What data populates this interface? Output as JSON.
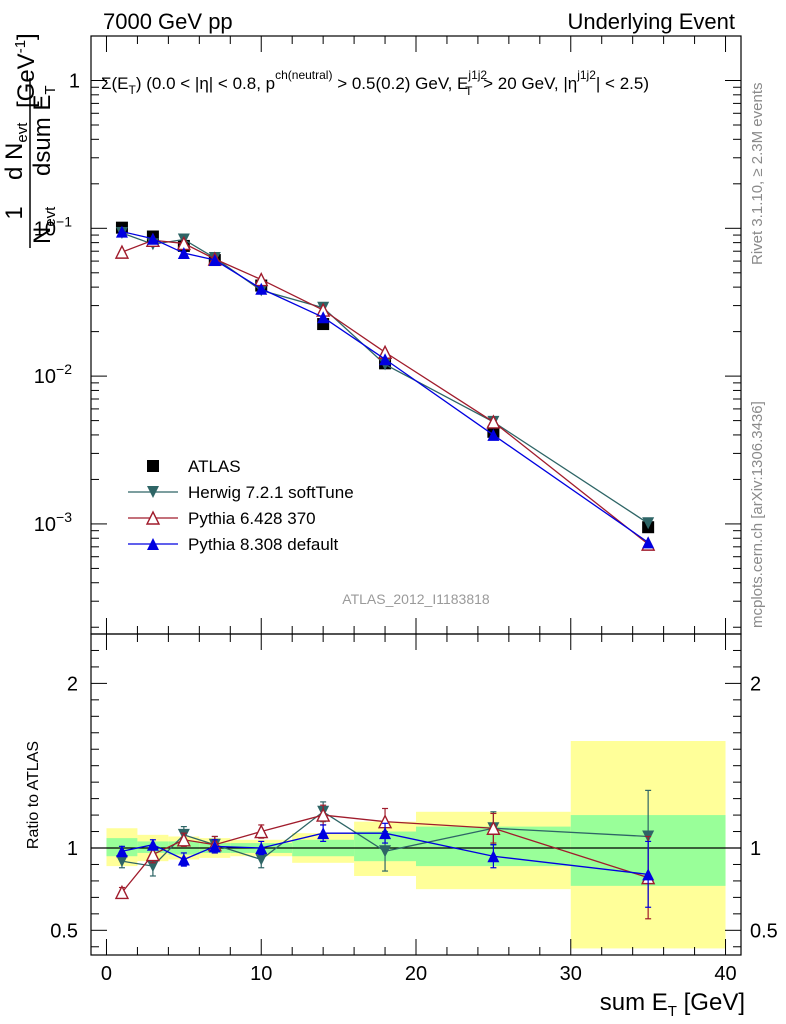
{
  "header": {
    "left": "7000 GeV pp",
    "right": "Underlying Event"
  },
  "cuts": {
    "a": "Σ(E",
    "a_sub": "T",
    "b": ") (0.0 < |η| < 0.8, p",
    "b_sup": "ch(neutral)",
    "c": " > 0.5(0.2) GeV, E",
    "c_sup": "j1j2",
    "c_sub": "T",
    "d": " > 20 GeV, |η",
    "d_sup": "j1j2",
    "e": "| < 2.5)"
  },
  "side": {
    "rivet": "Rivet 3.1.10, ≥ 2.3M events",
    "mcplots": "mcplots.cern.ch [arXiv:1306.3436]"
  },
  "watermark": "ATLAS_2012_I1183818",
  "ylabel_top": {
    "one": "1",
    "n": "N",
    "n_sub": "evt",
    "d": "d N",
    "d_sub": "evt",
    "dsum": "dsum E",
    "dsum_sub": "T",
    "unit": "[GeV",
    "unit_sup": "-1",
    "unit_end": "]"
  },
  "ylabel_bottom": "Ratio to ATLAS",
  "xlabel": {
    "main": "sum E",
    "sub": "T",
    "unit": " [GeV]"
  },
  "colors": {
    "atlas": "#000000",
    "herwig": "#2e6566",
    "pythia6": "#a01c2c",
    "pythia8": "#0000e0",
    "band_inner": "#99ff99",
    "band_outer": "#ffff99"
  },
  "chart_data": {
    "type": "scatter",
    "x_label": "sum E_T [GeV]",
    "xlim": [
      -1,
      41
    ],
    "main_panel": {
      "yscale": "log",
      "ylim": [
        0.00018,
        2.0
      ],
      "y_ticks_labeled": [
        "10^-3",
        "10^-2",
        "10^-1",
        "1"
      ]
    },
    "ratio_panel": {
      "ylim": [
        0.35,
        2.3
      ],
      "y_ticks": [
        0.5,
        1,
        2
      ]
    },
    "x_ticks": [
      0,
      10,
      20,
      30,
      40
    ],
    "legend_position": "lower-left",
    "bins": [
      [
        0,
        2
      ],
      [
        2,
        4
      ],
      [
        4,
        6
      ],
      [
        6,
        8
      ],
      [
        8,
        12
      ],
      [
        12,
        16
      ],
      [
        16,
        20
      ],
      [
        20,
        30
      ],
      [
        30,
        40
      ]
    ],
    "x": [
      1,
      3,
      5,
      7,
      10,
      14,
      18,
      25,
      35
    ],
    "band_inner": [
      [
        0.95,
        1.06
      ],
      [
        0.97,
        1.04
      ],
      [
        0.96,
        1.04
      ],
      [
        0.97,
        1.03
      ],
      [
        0.97,
        1.03
      ],
      [
        0.95,
        1.05
      ],
      [
        0.92,
        1.1
      ],
      [
        0.89,
        1.13
      ],
      [
        0.77,
        1.2
      ]
    ],
    "band_outer": [
      [
        0.89,
        1.12
      ],
      [
        0.92,
        1.08
      ],
      [
        0.93,
        1.07
      ],
      [
        0.94,
        1.06
      ],
      [
        0.95,
        1.05
      ],
      [
        0.91,
        1.09
      ],
      [
        0.83,
        1.16
      ],
      [
        0.75,
        1.22
      ],
      [
        0.39,
        1.65
      ]
    ],
    "series": [
      {
        "name": "ATLAS",
        "marker": "square",
        "values": [
          0.101,
          0.088,
          0.076,
          0.061,
          0.041,
          0.0225,
          0.0122,
          0.0042,
          0.00095
        ],
        "ratio": [
          1,
          1,
          1,
          1,
          1,
          1,
          1,
          1,
          1
        ],
        "ratio_err": [
          0,
          0,
          0,
          0,
          0,
          0,
          0,
          0,
          0
        ]
      },
      {
        "name": "Herwig 7.2.1 softTune",
        "marker": "triangle-down",
        "values": [
          0.093,
          0.078,
          0.084,
          0.063,
          0.038,
          0.029,
          0.012,
          0.0049,
          0.00101
        ],
        "ratio": [
          0.92,
          0.89,
          1.08,
          1.02,
          0.93,
          1.22,
          0.98,
          1.12,
          1.07
        ],
        "ratio_err": [
          0.04,
          0.06,
          0.05,
          0.05,
          0.05,
          0.06,
          0.12,
          0.1,
          0.28
        ]
      },
      {
        "name": "Pythia 6.428 370",
        "marker": "triangle-open",
        "values": [
          0.069,
          0.083,
          0.079,
          0.062,
          0.045,
          0.028,
          0.0145,
          0.0049,
          0.00073
        ],
        "ratio": [
          0.73,
          0.96,
          1.05,
          1.02,
          1.1,
          1.2,
          1.16,
          1.12,
          0.82
        ],
        "ratio_err": [
          0.03,
          0.05,
          0.04,
          0.05,
          0.04,
          0.06,
          0.08,
          0.09,
          0.25
        ]
      },
      {
        "name": "Pythia 8.308 default",
        "marker": "triangle-up",
        "values": [
          0.095,
          0.085,
          0.068,
          0.061,
          0.039,
          0.025,
          0.013,
          0.004,
          0.00075
        ],
        "ratio": [
          0.98,
          1.02,
          0.93,
          1.01,
          1.0,
          1.09,
          1.09,
          0.95,
          0.84
        ],
        "ratio_err": [
          0.03,
          0.03,
          0.04,
          0.04,
          0.04,
          0.05,
          0.06,
          0.07,
          0.2
        ]
      }
    ]
  }
}
